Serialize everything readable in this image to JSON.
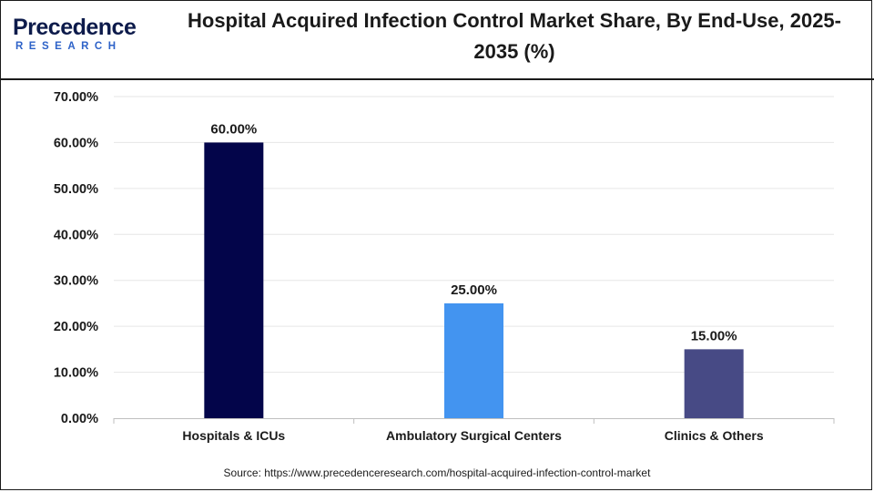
{
  "brand": {
    "name": "Precedence",
    "tagline": "RESEARCH"
  },
  "source_text": "Source: https://www.precedenceresearch.com/hospital-acquired-infection-control-market",
  "chart_data": {
    "type": "bar",
    "title": "Hospital Acquired Infection Control Market Share, By End-Use, 2025-2035 (%)",
    "categories": [
      "Hospitals & ICUs",
      "Ambulatory Surgical Centers",
      "Clinics & Others"
    ],
    "values": [
      60,
      25,
      15
    ],
    "data_labels": [
      "60.00%",
      "25.00%",
      "15.00%"
    ],
    "bar_colors": [
      "#03054a",
      "#4394f0",
      "#474a85"
    ],
    "ylim": [
      0,
      70
    ],
    "yticks": [
      0,
      10,
      20,
      30,
      40,
      50,
      60,
      70
    ],
    "ytick_labels": [
      "0.00%",
      "10.00%",
      "20.00%",
      "30.00%",
      "40.00%",
      "50.00%",
      "60.00%",
      "70.00%"
    ],
    "xlabel": "",
    "ylabel": "",
    "grid": true,
    "legend": "none"
  }
}
